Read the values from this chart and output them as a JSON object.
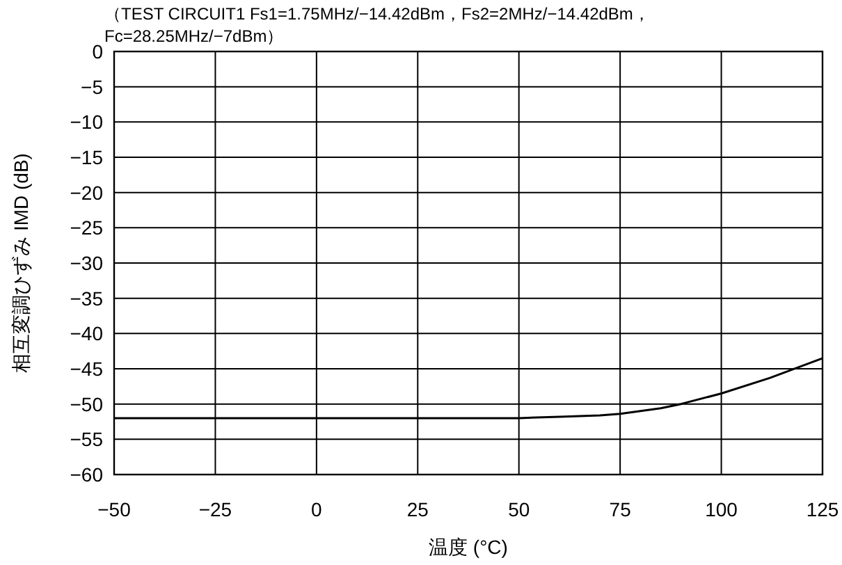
{
  "chart_data": {
    "type": "line",
    "title": "（TEST CIRCUIT1 Fs1=1.75MHz/−14.42dBm，Fs2=2MHz/−14.42dBm，Fc=28.25MHz/−7dBm）",
    "xlabel": "温度 (°C)",
    "ylabel": "相互変調ひずみ IMD (dB)",
    "series": [
      {
        "color": "#000000",
        "x": [
          -50,
          -25,
          0,
          25,
          50,
          60,
          70,
          75,
          80,
          85,
          90,
          100,
          112,
          125
        ],
        "values": [
          -52,
          -52,
          -52,
          -52,
          -52,
          -51.8,
          -51.6,
          -51.4,
          -51,
          -50.6,
          -50,
          -48.5,
          -46.3,
          -43.5
        ]
      }
    ],
    "xlim": [
      -50,
      125
    ],
    "xticks": [
      -50,
      -25,
      0,
      25,
      50,
      75,
      100,
      125
    ],
    "ylim": [
      -60,
      0
    ],
    "yticks": [
      0,
      -5,
      -10,
      -15,
      -20,
      -25,
      -30,
      -35,
      -40,
      -45,
      -50,
      -55,
      -60
    ],
    "grid": true,
    "marker": "none",
    "line_style": "solid"
  }
}
